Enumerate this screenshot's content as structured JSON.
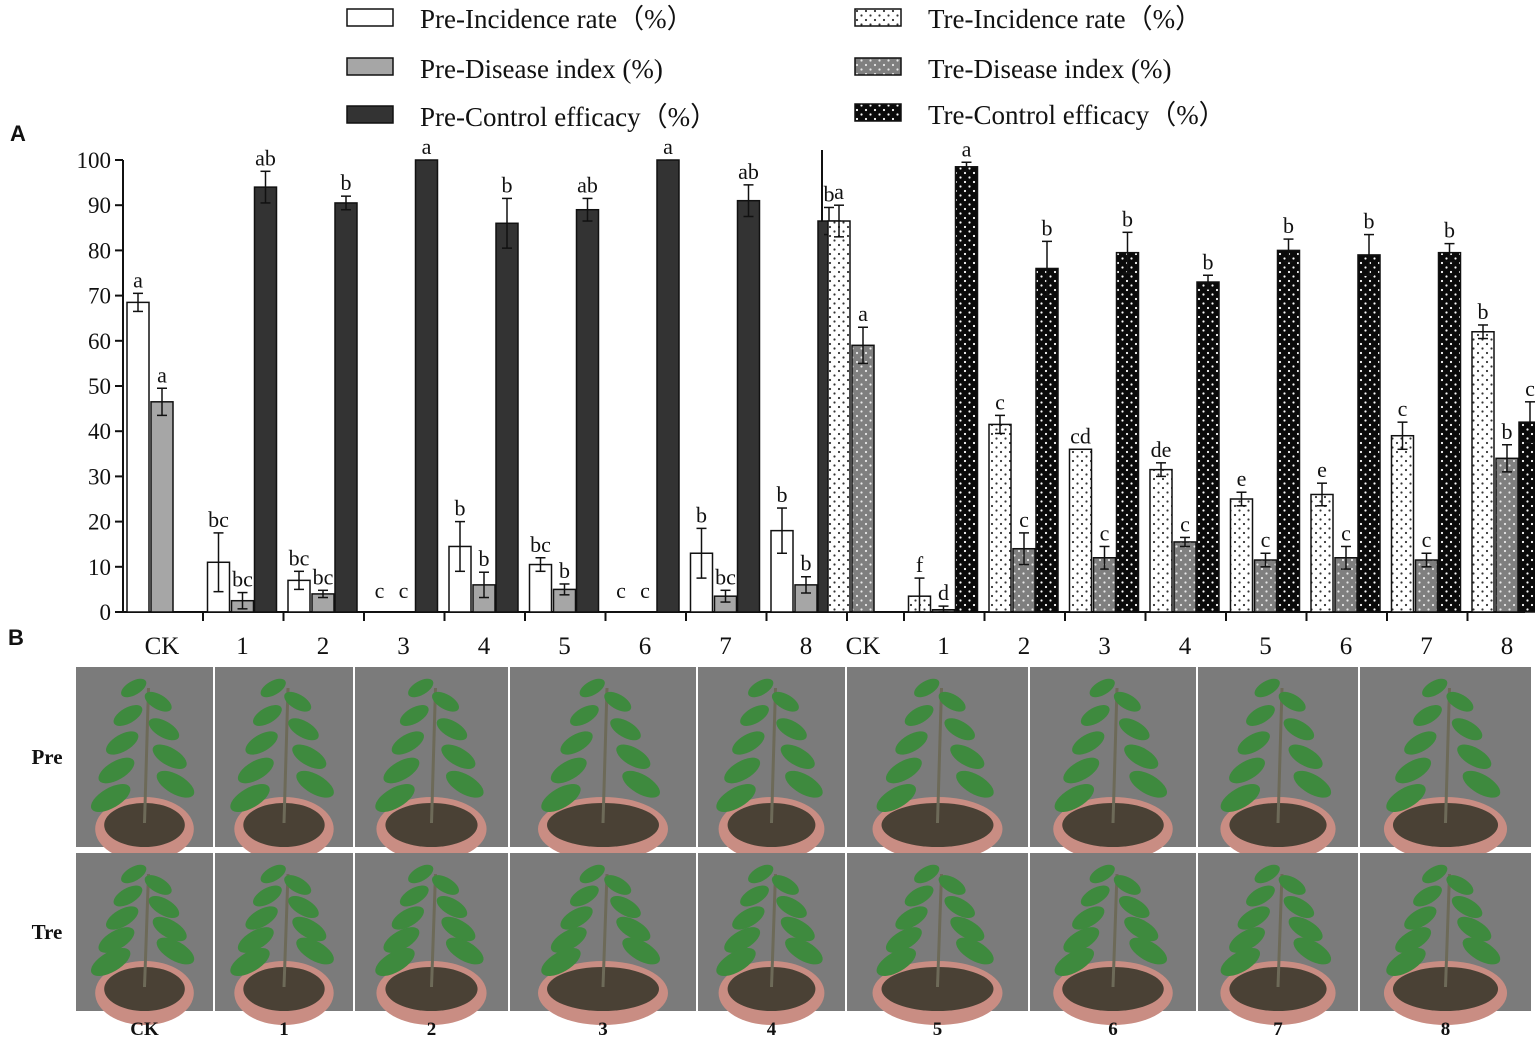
{
  "panel_labels": {
    "a": "A",
    "b": "B"
  },
  "colors": {
    "pre_incidence": "#ffffff",
    "pre_disease": "#a6a6a6",
    "pre_control": "#333333",
    "tre_incidence": "#f2f2f2",
    "tre_disease": "#7f7f7f",
    "tre_control": "#111111",
    "photo_bg": "#7b7b7b",
    "leaf": "#3e8a3e",
    "pot": "#c98d83"
  },
  "chart_data": {
    "type": "bar",
    "title": "",
    "xlabel": "",
    "ylabel": "",
    "ylim": [
      0,
      100
    ],
    "yticks": [
      0,
      10,
      20,
      30,
      40,
      50,
      60,
      70,
      80,
      90,
      100
    ],
    "grid": false,
    "legend_position": "top",
    "groups": [
      {
        "name": "Pre",
        "categories": [
          "CK",
          "1",
          "2",
          "3",
          "4",
          "5",
          "6",
          "7",
          "8"
        ],
        "series": [
          {
            "name": "Pre-Incidence rate（%）",
            "pattern": "white",
            "values": [
              68.5,
              11.0,
              7.0,
              0,
              14.5,
              10.5,
              0,
              13.0,
              18.0
            ],
            "errors": [
              2.0,
              6.5,
              2.0,
              0,
              5.5,
              1.5,
              0,
              5.5,
              5.0
            ],
            "letters": [
              "a",
              "bc",
              "bc",
              "c",
              "b",
              "bc",
              "c",
              "b",
              "b"
            ]
          },
          {
            "name": "Pre-Disease index (%)",
            "pattern": "gray",
            "values": [
              46.5,
              2.5,
              4.0,
              0,
              6.0,
              5.0,
              0,
              3.5,
              6.0
            ],
            "errors": [
              3.0,
              1.8,
              0.8,
              0,
              2.8,
              1.2,
              0,
              1.3,
              1.8
            ],
            "letters": [
              "a",
              "bc",
              "bc",
              "c",
              "b",
              "b",
              "c",
              "bc",
              "b"
            ]
          },
          {
            "name": "Pre-Control efficacy（%）",
            "pattern": "dark",
            "values": [
              null,
              94.0,
              90.5,
              100,
              86.0,
              89.0,
              100,
              91.0,
              86.5
            ],
            "errors": [
              0,
              3.5,
              1.5,
              0,
              5.5,
              2.5,
              0,
              3.5,
              3.0
            ],
            "letters": [
              "",
              "ab",
              "b",
              "a",
              "b",
              "ab",
              "a",
              "ab",
              "b"
            ]
          }
        ]
      },
      {
        "name": "Tre",
        "categories": [
          "CK",
          "1",
          "2",
          "3",
          "4",
          "5",
          "6",
          "7",
          "8"
        ],
        "series": [
          {
            "name": "Tre-Incidence rate（%）",
            "pattern": "dotted-white",
            "values": [
              86.5,
              3.5,
              41.5,
              36.0,
              31.5,
              25.0,
              26.0,
              39.0,
              62.0
            ],
            "errors": [
              3.5,
              4.0,
              2.0,
              0,
              1.5,
              1.5,
              2.5,
              3.0,
              1.5
            ],
            "letters": [
              "a",
              "f",
              "c",
              "cd",
              "de",
              "e",
              "e",
              "c",
              "b"
            ]
          },
          {
            "name": "Tre-Disease index (%)",
            "pattern": "dotted-gray",
            "values": [
              59.0,
              0.5,
              14.0,
              12.0,
              15.5,
              11.5,
              12.0,
              11.5,
              34.0
            ],
            "errors": [
              4.0,
              0.8,
              3.5,
              2.5,
              1.0,
              1.5,
              2.5,
              1.5,
              3.0
            ],
            "letters": [
              "a",
              "d",
              "c",
              "c",
              "c",
              "c",
              "c",
              "c",
              "b"
            ]
          },
          {
            "name": "Tre-Control efficacy（%）",
            "pattern": "dotted-black",
            "values": [
              null,
              98.5,
              76.0,
              79.5,
              73.0,
              80.0,
              79.0,
              79.5,
              42.0
            ],
            "errors": [
              0,
              1.0,
              6.0,
              4.5,
              1.5,
              2.5,
              4.5,
              2.0,
              4.5
            ],
            "letters": [
              "",
              "a",
              "b",
              "b",
              "b",
              "b",
              "b",
              "b",
              "c"
            ]
          }
        ]
      }
    ]
  },
  "photo_panel": {
    "row_labels": [
      "Pre",
      "Tre"
    ],
    "column_labels": [
      "CK",
      "1",
      "2",
      "3",
      "4",
      "5",
      "6",
      "7",
      "8"
    ]
  }
}
